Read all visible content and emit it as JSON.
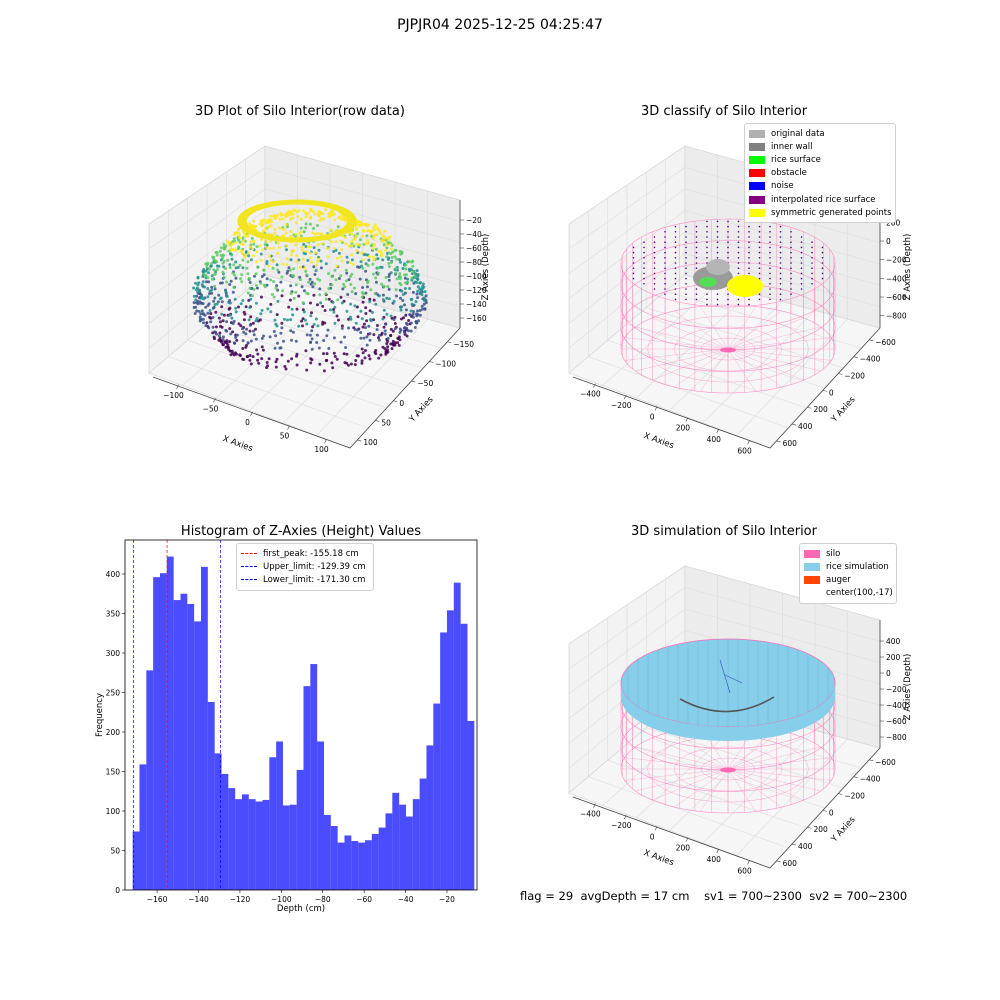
{
  "suptitle": "PJPJR04 2025-12-25 04:25:47",
  "panel_3d_raw": {
    "title": "3D Plot of Silo Interior(row data)",
    "xlabel": "X Axies",
    "ylabel": "Y Axies",
    "zlabel": "Z Axies (Depth)",
    "xticks": [
      "−100",
      "−50",
      "0",
      "50",
      "100"
    ],
    "yticks": [
      "100",
      "50",
      "0",
      "−50",
      "−100",
      "−150"
    ],
    "zticks": [
      "−20",
      "−40",
      "−60",
      "−80",
      "−100",
      "−120",
      "−140",
      "−160"
    ],
    "colormap": [
      "#440154",
      "#3b528b",
      "#21908d",
      "#5dc963",
      "#fde725"
    ]
  },
  "panel_3d_classify": {
    "title": "3D classify of Silo Interior",
    "xlabel": "X Axies",
    "ylabel": "Y Axies",
    "zlabel": "Z Axies (Depth)",
    "xticks": [
      "−400",
      "−200",
      "0",
      "200",
      "400",
      "600"
    ],
    "yticks": [
      "600",
      "400",
      "200",
      "0",
      "−200",
      "−400",
      "−600"
    ],
    "zticks": [
      "200",
      "0",
      "−200",
      "−400",
      "−600",
      "−800"
    ],
    "legend": [
      {
        "label": "original data",
        "color": "#b0b0b0"
      },
      {
        "label": "inner wall",
        "color": "#808080"
      },
      {
        "label": "rice surface",
        "color": "#00ff00"
      },
      {
        "label": "obstacle",
        "color": "#ff0000"
      },
      {
        "label": "noise",
        "color": "#0000ff"
      },
      {
        "label": "interpolated rice surface",
        "color": "#800080"
      },
      {
        "label": "symmetric generated points",
        "color": "#ffff00"
      }
    ]
  },
  "panel_3d_sim": {
    "title": "3D simulation of Silo Interior",
    "xlabel": "X Axies",
    "ylabel": "Y Axies",
    "zlabel": "Z Axies (Depth)",
    "xticks": [
      "−400",
      "−200",
      "0",
      "200",
      "400",
      "600"
    ],
    "yticks": [
      "600",
      "400",
      "200",
      "0",
      "−200",
      "−400",
      "−600"
    ],
    "zticks": [
      "400",
      "200",
      "0",
      "−200",
      "−400",
      "−600",
      "−800"
    ],
    "legend": [
      {
        "label": "silo",
        "color": "#ff69b4"
      },
      {
        "label": "rice simulation",
        "color": "#87ceeb"
      },
      {
        "label": "auger",
        "color": "#ff4500"
      },
      {
        "label": "center(100,-17)",
        "color": ""
      }
    ]
  },
  "chart_data": {
    "type": "bar",
    "title": "Histogram of Z-Axies (Height) Values",
    "xlabel": "Depth (cm)",
    "ylabel": "Frequency",
    "xlim": [
      -175.5,
      -5.5
    ],
    "ylim": [
      0,
      443
    ],
    "bar_color": "#0000ff",
    "bar_alpha": 0.7,
    "bin_edges": [
      -171.8,
      -168.5,
      -165.2,
      -161.9,
      -158.6,
      -155.3,
      -152.0,
      -148.7,
      -145.4,
      -142.1,
      -138.8,
      -135.5,
      -132.2,
      -128.9,
      -125.6,
      -122.3,
      -119.0,
      -115.7,
      -112.4,
      -109.1,
      -105.8,
      -102.5,
      -99.2,
      -95.9,
      -92.6,
      -89.3,
      -86.0,
      -82.7,
      -79.4,
      -76.1,
      -72.8,
      -69.5,
      -66.2,
      -62.9,
      -59.6,
      -56.3,
      -53.0,
      -49.7,
      -46.4,
      -43.1,
      -39.8,
      -36.5,
      -33.2,
      -29.9,
      -26.6,
      -23.3,
      -20.0,
      -16.7,
      -13.4,
      -10.1
    ],
    "counts": [
      74,
      159,
      278,
      396,
      401,
      422,
      367,
      375,
      362,
      340,
      409,
      238,
      173,
      147,
      129,
      115,
      121,
      115,
      112,
      114,
      168,
      188,
      107,
      108,
      152,
      258,
      286,
      188,
      95,
      81,
      60,
      69,
      62,
      60,
      63,
      71,
      79,
      97,
      123,
      108,
      93,
      115,
      141,
      183,
      236,
      326,
      354,
      389,
      337,
      214
    ],
    "xticks": [
      -160,
      -140,
      -120,
      -100,
      -80,
      -60,
      -40,
      -20
    ],
    "yticks": [
      0,
      50,
      100,
      150,
      200,
      250,
      300,
      350,
      400
    ],
    "lines": [
      {
        "label": "first_peak: -155.18 cm",
        "x": -155.18,
        "color": "#ff0000"
      },
      {
        "label": "Upper_limit: -129.39 cm",
        "x": -129.39,
        "color": "#0000ff"
      },
      {
        "label": "Lower_limit: -171.30 cm",
        "x": -171.3,
        "color": "#0000ff"
      }
    ]
  },
  "footer": {
    "flag": "flag = 29",
    "avg_depth": "avgDepth = 17 cm",
    "sv1": "sv1 = 700~2300",
    "sv2": "sv2 = 700~2300"
  }
}
